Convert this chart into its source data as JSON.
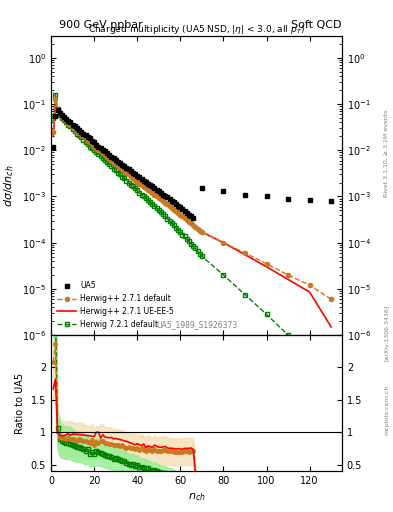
{
  "title_top": "900 GeV ppbar",
  "title_right": "Soft QCD",
  "plot_title": "Charged multiplicity (UA5 NSD, |η| < 3.0, all p_T)",
  "ylabel_main": "dσ/dn_ch",
  "ylabel_ratio": "Ratio to UA5",
  "xlabel": "n_ch",
  "ylim_main": [
    1e-06,
    3
  ],
  "ylim_ratio": [
    0.4,
    2.5
  ],
  "xlim": [
    0,
    135
  ],
  "watermark": "UA5_1989_S1926373",
  "right_label": "Rivet 3.1.10, ≥ 3.1M events",
  "arxiv_label": "[arXiv:1306.3436]",
  "mcplots_label": "mcplots.cern.ch",
  "legend": [
    {
      "label": "UA5",
      "color": "black",
      "marker": "s",
      "ls": "none"
    },
    {
      "label": "Herwig++ 2.7.1 default",
      "color": "#cc7722",
      "marker": "o",
      "ls": "--"
    },
    {
      "label": "Herwig++ 2.7.1 UE-EE-5",
      "color": "red",
      "marker": "none",
      "ls": "-"
    },
    {
      "label": "Herwig 7.2.1 default",
      "color": "green",
      "marker": "s",
      "ls": "--"
    }
  ],
  "ua5_x": [
    1,
    2,
    3,
    4,
    5,
    6,
    7,
    8,
    9,
    10,
    11,
    12,
    13,
    14,
    15,
    16,
    17,
    18,
    19,
    20,
    21,
    22,
    23,
    24,
    25,
    26,
    27,
    28,
    29,
    30,
    31,
    32,
    33,
    34,
    35,
    36,
    37,
    38,
    39,
    40,
    41,
    42,
    43,
    44,
    45,
    46,
    47,
    48,
    49,
    50,
    51,
    52,
    53,
    54,
    55,
    56,
    57,
    58,
    59,
    60,
    61,
    62,
    63,
    64,
    65,
    66,
    70,
    80,
    90,
    100,
    110,
    120,
    130
  ],
  "ua5_y": [
    0.012,
    0.055,
    0.075,
    0.065,
    0.058,
    0.053,
    0.048,
    0.043,
    0.04,
    0.036,
    0.033,
    0.03,
    0.027,
    0.025,
    0.023,
    0.021,
    0.019,
    0.018,
    0.016,
    0.015,
    0.013,
    0.012,
    0.011,
    0.01,
    0.0095,
    0.0087,
    0.008,
    0.0073,
    0.0068,
    0.0062,
    0.0057,
    0.0053,
    0.0049,
    0.0045,
    0.0042,
    0.0039,
    0.0036,
    0.0033,
    0.0031,
    0.0028,
    0.0026,
    0.0024,
    0.0022,
    0.0021,
    0.0019,
    0.0018,
    0.0017,
    0.0015,
    0.0014,
    0.0013,
    0.0012,
    0.0011,
    0.001,
    0.00095,
    0.00088,
    0.00081,
    0.00075,
    0.00069,
    0.00063,
    0.00058,
    0.00053,
    0.00048,
    0.00044,
    0.0004,
    0.00037,
    0.00034,
    0.0015,
    0.0013,
    0.0011,
    0.001,
    0.0009,
    0.00085,
    0.0008
  ],
  "hw271def_x": [
    1,
    2,
    3,
    4,
    5,
    6,
    7,
    8,
    9,
    10,
    11,
    12,
    13,
    14,
    15,
    16,
    17,
    18,
    19,
    20,
    21,
    22,
    23,
    24,
    25,
    26,
    27,
    28,
    29,
    30,
    31,
    32,
    33,
    34,
    35,
    36,
    37,
    38,
    39,
    40,
    41,
    42,
    43,
    44,
    45,
    46,
    47,
    48,
    49,
    50,
    51,
    52,
    53,
    54,
    55,
    56,
    57,
    58,
    59,
    60,
    61,
    62,
    63,
    64,
    65,
    66,
    67,
    68,
    69,
    70,
    80,
    90,
    100,
    110,
    120,
    130
  ],
  "hw271def_y": [
    0.025,
    0.13,
    0.075,
    0.06,
    0.053,
    0.048,
    0.043,
    0.039,
    0.036,
    0.032,
    0.029,
    0.026,
    0.024,
    0.022,
    0.02,
    0.018,
    0.016,
    0.015,
    0.014,
    0.012,
    0.011,
    0.01,
    0.0095,
    0.0087,
    0.0079,
    0.0072,
    0.0066,
    0.006,
    0.0055,
    0.005,
    0.0046,
    0.0042,
    0.0039,
    0.0035,
    0.0032,
    0.003,
    0.0027,
    0.0025,
    0.0023,
    0.0021,
    0.0019,
    0.0018,
    0.0016,
    0.0015,
    0.0014,
    0.0013,
    0.0012,
    0.0011,
    0.001,
    0.00093,
    0.00086,
    0.00079,
    0.00073,
    0.00067,
    0.00062,
    0.00057,
    0.00052,
    0.00048,
    0.00044,
    0.0004,
    0.00037,
    0.00034,
    0.00031,
    0.00028,
    0.00026,
    0.00024,
    0.00022,
    0.0002,
    0.00018,
    0.00017,
    0.0001,
    6e-05,
    3.5e-05,
    2e-05,
    1.2e-05,
    6e-06
  ],
  "hw271ue_x": [
    1,
    2,
    3,
    4,
    5,
    6,
    7,
    8,
    9,
    10,
    11,
    12,
    13,
    14,
    15,
    16,
    17,
    18,
    19,
    20,
    21,
    22,
    23,
    24,
    25,
    26,
    27,
    28,
    29,
    30,
    31,
    32,
    33,
    34,
    35,
    36,
    37,
    38,
    39,
    40,
    41,
    42,
    43,
    44,
    45,
    46,
    47,
    48,
    49,
    50,
    51,
    52,
    53,
    54,
    55,
    56,
    57,
    58,
    59,
    60,
    61,
    62,
    63,
    64,
    65,
    66,
    67,
    68,
    69,
    70,
    80,
    90,
    100,
    110,
    120,
    130
  ],
  "hw271ue_y": [
    0.02,
    0.1,
    0.075,
    0.062,
    0.055,
    0.05,
    0.046,
    0.042,
    0.038,
    0.035,
    0.032,
    0.029,
    0.026,
    0.024,
    0.022,
    0.02,
    0.018,
    0.017,
    0.015,
    0.014,
    0.013,
    0.012,
    0.01,
    0.0096,
    0.0088,
    0.008,
    0.0073,
    0.0067,
    0.0061,
    0.0056,
    0.0051,
    0.0047,
    0.0043,
    0.0039,
    0.0036,
    0.0033,
    0.003,
    0.0027,
    0.0025,
    0.0023,
    0.0021,
    0.0019,
    0.0018,
    0.0016,
    0.0015,
    0.0014,
    0.0013,
    0.0012,
    0.0011,
    0.001,
    0.00092,
    0.00085,
    0.00078,
    0.00072,
    0.00066,
    0.00061,
    0.00056,
    0.00051,
    0.00047,
    0.00043,
    0.00039,
    0.00036,
    0.00033,
    0.0003,
    0.00028,
    0.00025,
    0.00023,
    0.00021,
    0.00019,
    0.00017,
    0.0001,
    5.5e-05,
    3e-05,
    1.6e-05,
    8.5e-06,
    1.5e-06
  ],
  "hw721_x": [
    1,
    2,
    3,
    4,
    5,
    6,
    7,
    8,
    9,
    10,
    11,
    12,
    13,
    14,
    15,
    16,
    17,
    18,
    19,
    20,
    21,
    22,
    23,
    24,
    25,
    26,
    27,
    28,
    29,
    30,
    31,
    32,
    33,
    34,
    35,
    36,
    37,
    38,
    39,
    40,
    41,
    42,
    43,
    44,
    45,
    46,
    47,
    48,
    49,
    50,
    51,
    52,
    53,
    54,
    55,
    56,
    57,
    58,
    59,
    60,
    61,
    62,
    63,
    64,
    65,
    66,
    67,
    68,
    69,
    70,
    80,
    90,
    100,
    110,
    120,
    130
  ],
  "hw721_y": [
    0.05,
    0.16,
    0.08,
    0.058,
    0.05,
    0.045,
    0.04,
    0.036,
    0.033,
    0.029,
    0.026,
    0.023,
    0.021,
    0.019,
    0.017,
    0.015,
    0.014,
    0.012,
    0.011,
    0.01,
    0.0092,
    0.0083,
    0.0075,
    0.0067,
    0.0061,
    0.0055,
    0.005,
    0.0045,
    0.004,
    0.0037,
    0.0033,
    0.003,
    0.0027,
    0.0025,
    0.0022,
    0.002,
    0.0018,
    0.0017,
    0.0015,
    0.0014,
    0.0012,
    0.0011,
    0.001,
    0.00093,
    0.00084,
    0.00076,
    0.00069,
    0.00062,
    0.00056,
    0.0005,
    0.00045,
    0.00041,
    0.00037,
    0.00033,
    0.0003,
    0.00027,
    0.00024,
    0.00021,
    0.00019,
    0.00017,
    0.00015,
    0.00014,
    0.00012,
    0.00011,
    9.5e-05,
    8.5e-05,
    7.5e-05,
    6.6e-05,
    5.8e-05,
    5.1e-05,
    2e-05,
    7.5e-06,
    2.8e-06,
    1e-06,
    3.8e-07,
    1.4e-07
  ],
  "colors": {
    "ua5": "black",
    "hw271def": "#cc7722",
    "hw271ue": "red",
    "hw721": "green",
    "hw271def_band": "#f5deb3",
    "hw721_band": "#90ee90"
  }
}
